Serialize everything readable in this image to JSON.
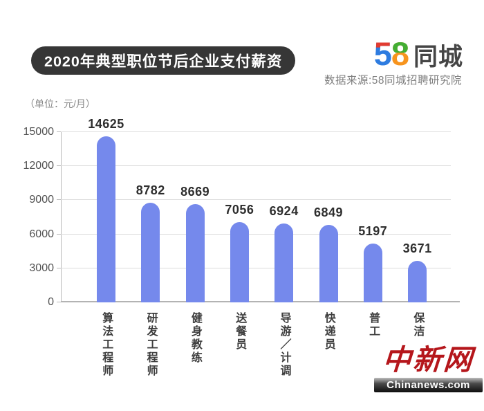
{
  "header": {
    "title": "2020年典型职位节后企业支付薪资",
    "logo": {
      "digit5": "5",
      "digit8": "8",
      "wordmark": "同城"
    },
    "source": "数据来源:58同城招聘研究院"
  },
  "unit_label": "（单位：元/月）",
  "chart_data": {
    "type": "bar",
    "title": "2020年典型职位节后企业支付薪资",
    "subtitle": "数据来源:58同城招聘研究院",
    "unit": "元/月",
    "categories": [
      "算法工程师",
      "研发工程师",
      "健身教练",
      "送餐员",
      "导游／计调",
      "快递员",
      "普工",
      "保洁"
    ],
    "values": [
      14625,
      8782,
      8669,
      7056,
      6924,
      6849,
      5197,
      3671
    ],
    "xlabel": "",
    "ylabel": "（单位：元/月）",
    "ylim": [
      0,
      15000
    ],
    "yticks": [
      0,
      3000,
      6000,
      9000,
      12000,
      15000
    ],
    "grid": true,
    "legend": "none",
    "bar_color": "#7589ec",
    "value_labels_shown": true
  },
  "watermark": {
    "name": "中新网",
    "domain": "Chinanews.com"
  },
  "colors": {
    "banner_bg": "#363636",
    "banner_text": "#ffffff",
    "bar": "#7589ec",
    "logo_blue": "#2e7ce0",
    "logo_red": "#e23b30",
    "logo_green": "#43ae34",
    "logo_orange": "#f7941e",
    "source_text": "#7e7e7e",
    "watermark_red": "#b5161b"
  }
}
